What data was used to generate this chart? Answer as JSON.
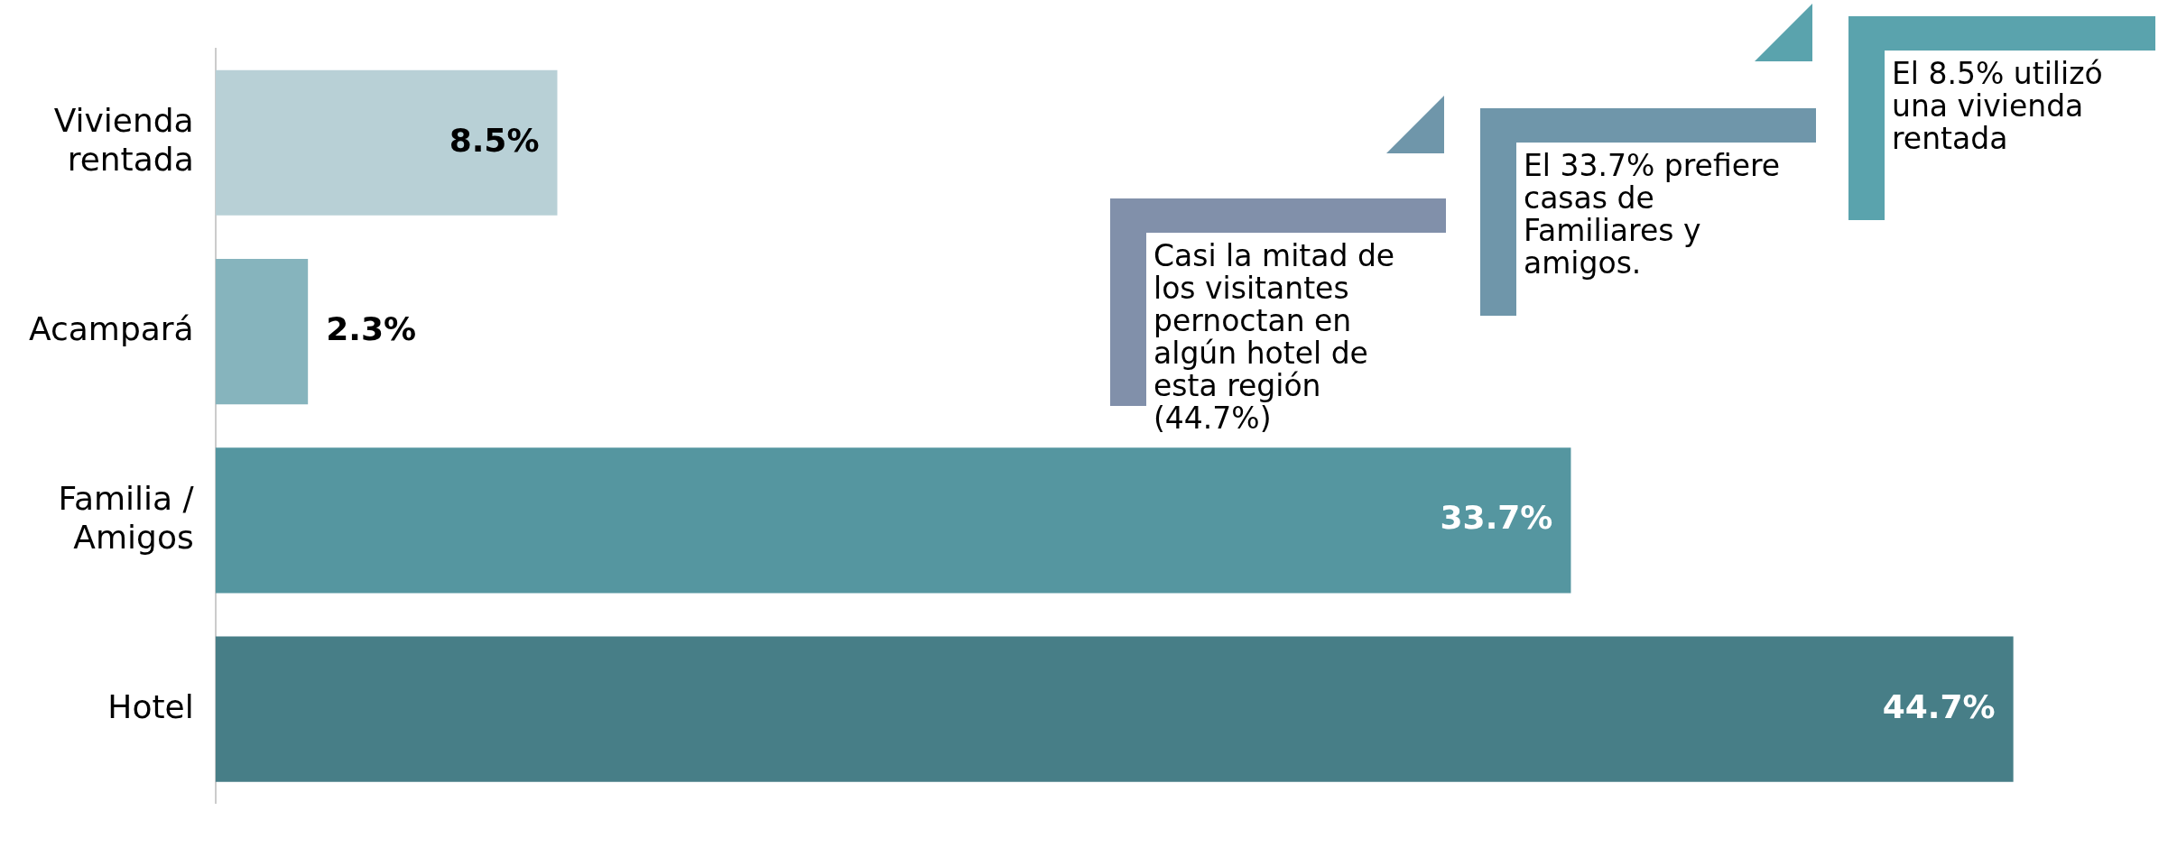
{
  "chart_data": {
    "type": "bar",
    "orientation": "horizontal",
    "categories": [
      "Vivienda rentada",
      "Acampará",
      "Familia / Amigos",
      "Hotel"
    ],
    "values": [
      8.5,
      2.3,
      33.7,
      44.7
    ],
    "colors": [
      "#b8d0d6",
      "#86b4bd",
      "#5596a0",
      "#477e87"
    ],
    "value_labels": [
      "8.5%",
      "2.3%",
      "33.7%",
      "44.7%"
    ],
    "grid": false,
    "legend": false,
    "annotations": [
      "Casi la mitad de los visitantes pernoctan en algún hotel de esta región (44.7%)",
      "El 33.7% prefiere casas de Familiares y amigos.",
      "El 8.5% utilizó una vivienda rentada"
    ]
  }
}
